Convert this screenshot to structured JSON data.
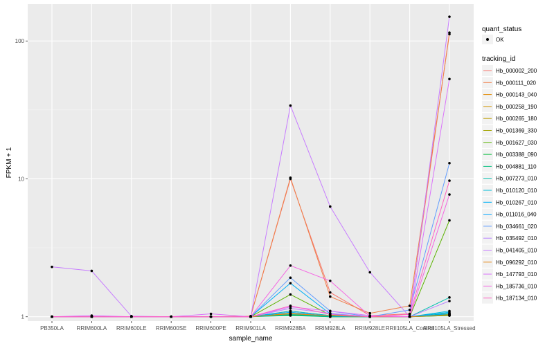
{
  "chart_data": {
    "type": "line",
    "xlabel": "sample_name",
    "ylabel": "FPKM + 1",
    "y_scale": "log10",
    "ylim": [
      0.93,
      185
    ],
    "y_ticks": [
      1,
      10,
      100
    ],
    "y_tick_labels": [
      "1",
      "10",
      "100"
    ],
    "grid": true,
    "legend_position": "right",
    "categories": [
      "PB350LA",
      "RRIM600LA",
      "RRIM600LE",
      "RRIM600SE",
      "RRIM600PE",
      "RRIM901LA",
      "RRIM928BA",
      "RRIM928LA",
      "RRIM928LE",
      "RRII105LA_Control",
      "RRII105LA_Stressed"
    ],
    "shape_legend": {
      "title": "quant_status",
      "items": [
        "OK"
      ]
    },
    "color_legend_title": "tracking_id",
    "series": [
      {
        "name": "Hb_000002_200",
        "color": "#F8766D",
        "values": [
          1,
          1,
          1,
          1,
          1,
          1.01,
          10.0,
          1.5,
          1.02,
          1.05,
          115
        ]
      },
      {
        "name": "Hb_000111_020",
        "color": "#EF7F49",
        "values": [
          1,
          1,
          1,
          1,
          1,
          1.01,
          10.2,
          1.4,
          1.06,
          1.2,
          112
        ]
      },
      {
        "name": "Hb_000143_040",
        "color": "#E18A00",
        "values": [
          1,
          1,
          1,
          1,
          1,
          1,
          1.1,
          1.02,
          1,
          1,
          1.05
        ]
      },
      {
        "name": "Hb_000258_190",
        "color": "#CF9400",
        "values": [
          1,
          1,
          1,
          1,
          1,
          1,
          1.05,
          1.01,
          1,
          1,
          1.03
        ]
      },
      {
        "name": "Hb_000265_180",
        "color": "#BB9D00",
        "values": [
          1,
          1,
          1,
          1,
          1,
          1,
          1.04,
          1,
          1,
          1,
          1.02
        ]
      },
      {
        "name": "Hb_001369_330",
        "color": "#A3A500",
        "values": [
          1,
          1,
          1,
          1,
          1,
          1,
          1.06,
          1.01,
          1,
          1,
          1.04
        ]
      },
      {
        "name": "Hb_001627_030",
        "color": "#5BB300",
        "values": [
          1,
          1,
          1,
          1,
          1,
          1,
          1.45,
          1.03,
          1,
          1,
          5.0
        ]
      },
      {
        "name": "Hb_003388_090",
        "color": "#00BA38",
        "values": [
          1,
          1,
          1,
          1,
          1,
          1,
          1.03,
          1,
          1,
          1,
          1.02
        ]
      },
      {
        "name": "Hb_004881_110",
        "color": "#00BF7D",
        "values": [
          1,
          1,
          1,
          1,
          1,
          1,
          1.02,
          1,
          1,
          1,
          1.06
        ]
      },
      {
        "name": "Hb_007273_010",
        "color": "#00C0AF",
        "values": [
          1,
          1,
          1,
          1,
          1,
          1,
          1.04,
          1.01,
          1,
          1,
          1.38
        ]
      },
      {
        "name": "Hb_010120_010",
        "color": "#00BCD8",
        "values": [
          1,
          1,
          1,
          1,
          1,
          1,
          1.1,
          1.02,
          1,
          1,
          1.1
        ]
      },
      {
        "name": "Hb_010267_010",
        "color": "#00B0F6",
        "values": [
          1,
          1,
          1,
          1,
          1,
          1,
          1.75,
          1.05,
          1,
          1,
          1.08
        ]
      },
      {
        "name": "Hb_011016_040",
        "color": "#00A5FF",
        "values": [
          1,
          1,
          1,
          1,
          1,
          1,
          1.08,
          1.01,
          1,
          1,
          1.05
        ]
      },
      {
        "name": "Hb_034661_020",
        "color": "#619CFF",
        "values": [
          1,
          1,
          1,
          1,
          1,
          1,
          1.92,
          1.1,
          1,
          1.12,
          13.0
        ]
      },
      {
        "name": "Hb_035492_010",
        "color": "#B983FF",
        "values": [
          1,
          1,
          1,
          1,
          1,
          1,
          1.15,
          1.06,
          1,
          1,
          1.3
        ]
      },
      {
        "name": "Hb_041405_010",
        "color": "#C77CFF",
        "values": [
          2.3,
          2.15,
          1.01,
          1,
          1,
          1,
          34.0,
          6.3,
          2.1,
          1,
          150
        ]
      },
      {
        "name": "Hb_096292_010",
        "color": "#E68613",
        "values": [
          1,
          1,
          1,
          1,
          1,
          1,
          1.05,
          1.02,
          1,
          1,
          1.03
        ]
      },
      {
        "name": "Hb_147793_010",
        "color": "#DB72FB",
        "values": [
          1,
          1.02,
          1,
          1,
          1.05,
          1,
          1.18,
          1.1,
          1.02,
          1,
          53.0
        ]
      },
      {
        "name": "Hb_185736_010",
        "color": "#F564E3",
        "values": [
          1,
          1,
          1,
          1,
          1,
          1,
          2.35,
          1.82,
          1.01,
          1,
          7.7
        ]
      },
      {
        "name": "Hb_187134_010",
        "color": "#FF61C3",
        "values": [
          1,
          1,
          1,
          1,
          1,
          1,
          1.2,
          1.04,
          1,
          1.04,
          9.7
        ]
      }
    ]
  }
}
